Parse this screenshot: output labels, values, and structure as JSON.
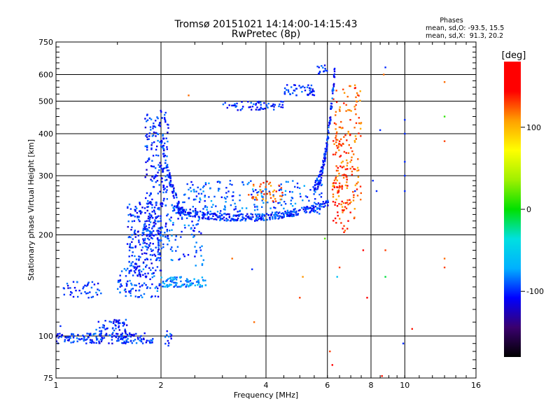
{
  "chart_data": {
    "type": "scatter",
    "title": "Tromsø 20151021 14:14:00-14:15:43",
    "subtitle": "RwPretec (8p)",
    "xlabel": "Frequency [MHz]",
    "ylabel": "Stationary phase Virtual Height [km]",
    "x_scale": "log",
    "y_scale": "log",
    "xlim": [
      1,
      16
    ],
    "ylim": [
      75,
      750
    ],
    "x_ticks": [
      1,
      2,
      4,
      6,
      8,
      10,
      16
    ],
    "x_gridlines": [
      2,
      4,
      6,
      8,
      10
    ],
    "y_ticks": [
      75,
      100,
      200,
      300,
      400,
      500,
      600,
      750
    ],
    "y_gridlines": [
      100,
      200,
      300,
      400,
      500,
      600
    ],
    "grid": true,
    "stats": {
      "header": "Phases",
      "line_o": "mean, sd,O: -93.5, 15.5",
      "line_x": "mean, sd,X:  91.3, 20.2"
    },
    "colorbar": {
      "label": "[deg]",
      "min": -180,
      "max": 180,
      "ticks": [
        -100,
        0,
        100
      ],
      "colormap": "rainbow",
      "stops": [
        "#000000",
        "#3a006e",
        "#0000ff",
        "#00b0ff",
        "#00e0e0",
        "#00e000",
        "#a0f000",
        "#ffff00",
        "#ffa000",
        "#ff0000",
        "#ff0000"
      ]
    },
    "traces": [
      {
        "x_range": [
          1.0,
          1.9
        ],
        "y_range": [
          95,
          102
        ],
        "phase": -100,
        "count": 170
      },
      {
        "x_range": [
          1.3,
          1.6
        ],
        "y_range": [
          100,
          112
        ],
        "phase": -100,
        "count": 60
      },
      {
        "x_range": [
          1.05,
          1.35
        ],
        "y_range": [
          130,
          145
        ],
        "phase": -100,
        "count": 40
      },
      {
        "x_range": [
          1.5,
          2.0
        ],
        "y_range": [
          130,
          160
        ],
        "phase": -95,
        "count": 90
      },
      {
        "x_range": [
          1.6,
          2.0
        ],
        "y_range": [
          150,
          250
        ],
        "phase": -100,
        "count": 220
      },
      {
        "x_range": [
          1.8,
          2.1
        ],
        "y_range": [
          180,
          470
        ],
        "phase": -100,
        "count": 260
      },
      {
        "x_range": [
          2.0,
          2.7
        ],
        "y_range": [
          140,
          150
        ],
        "phase": -80,
        "count": 90
      },
      {
        "x_range": [
          2.1,
          2.7
        ],
        "y_range": [
          160,
          230
        ],
        "phase": -90,
        "count": 60
      },
      {
        "x_range": [
          2.05,
          2.15
        ],
        "y_range": [
          93,
          105
        ],
        "phase": -100,
        "count": 12
      },
      {
        "x_range": [
          2.3,
          6.0
        ],
        "y_range": [
          230,
          290
        ],
        "phase": -90,
        "count": 200
      },
      {
        "x_range": [
          3.5,
          4.5
        ],
        "y_range": [
          250,
          290
        ],
        "phase": 120,
        "count": 40
      },
      {
        "x_range": [
          3.0,
          4.5
        ],
        "y_range": [
          470,
          500
        ],
        "phase": -100,
        "count": 60
      },
      {
        "x_range": [
          4.5,
          5.5
        ],
        "y_range": [
          520,
          560
        ],
        "phase": -100,
        "count": 50
      },
      {
        "x_range": [
          5.6,
          6.0
        ],
        "y_range": [
          600,
          640
        ],
        "phase": -95,
        "count": 14
      },
      {
        "x_range": [
          6.2,
          7.5
        ],
        "y_range": [
          220,
          560
        ],
        "phase": 120,
        "count": 160
      },
      {
        "x_range": [
          6.2,
          7.0
        ],
        "y_range": [
          200,
          400
        ],
        "phase": 135,
        "count": 60
      }
    ],
    "curves": [
      {
        "kind": "o-trace",
        "x_range": [
          2.15,
          6.05
        ],
        "y_min": 225,
        "phase": -100,
        "count": 360
      },
      {
        "kind": "o-cusp-left",
        "x_range": [
          2.02,
          2.3
        ],
        "y_range": [
          230,
          420
        ],
        "phase": -100,
        "count": 80
      },
      {
        "kind": "o-cusp-right",
        "x_range": [
          5.5,
          6.3
        ],
        "y_range": [
          280,
          620
        ],
        "phase": -100,
        "count": 140
      }
    ],
    "outliers": [
      {
        "x": 1.2,
        "y": 140,
        "phase": -100
      },
      {
        "x": 1.25,
        "y": 135,
        "phase": -100
      },
      {
        "x": 1.03,
        "y": 107,
        "phase": -100
      },
      {
        "x": 2.6,
        "y": 180,
        "phase": -100
      },
      {
        "x": 2.4,
        "y": 520,
        "phase": 120
      },
      {
        "x": 3.65,
        "y": 158,
        "phase": -100
      },
      {
        "x": 3.7,
        "y": 110,
        "phase": 120
      },
      {
        "x": 3.2,
        "y": 170,
        "phase": 120
      },
      {
        "x": 5.1,
        "y": 150,
        "phase": 110
      },
      {
        "x": 5.0,
        "y": 130,
        "phase": 130
      },
      {
        "x": 5.9,
        "y": 195,
        "phase": 20
      },
      {
        "x": 6.5,
        "y": 160,
        "phase": 130
      },
      {
        "x": 6.1,
        "y": 90,
        "phase": 130
      },
      {
        "x": 6.2,
        "y": 82,
        "phase": 150
      },
      {
        "x": 6.4,
        "y": 150,
        "phase": -60
      },
      {
        "x": 7.2,
        "y": 270,
        "phase": -100
      },
      {
        "x": 7.6,
        "y": 180,
        "phase": 150
      },
      {
        "x": 7.8,
        "y": 130,
        "phase": 160
      },
      {
        "x": 7.4,
        "y": 430,
        "phase": 120
      },
      {
        "x": 8.1,
        "y": 290,
        "phase": -100
      },
      {
        "x": 8.3,
        "y": 270,
        "phase": -100
      },
      {
        "x": 8.7,
        "y": 600,
        "phase": 120
      },
      {
        "x": 8.8,
        "y": 630,
        "phase": -100
      },
      {
        "x": 8.5,
        "y": 410,
        "phase": -100
      },
      {
        "x": 8.8,
        "y": 150,
        "phase": -10
      },
      {
        "x": 8.8,
        "y": 180,
        "phase": 130
      },
      {
        "x": 8.6,
        "y": 76,
        "phase": 140
      },
      {
        "x": 10.0,
        "y": 440,
        "phase": -100
      },
      {
        "x": 10.0,
        "y": 400,
        "phase": -100
      },
      {
        "x": 10.0,
        "y": 330,
        "phase": -100
      },
      {
        "x": 10.0,
        "y": 300,
        "phase": -100
      },
      {
        "x": 10.0,
        "y": 270,
        "phase": -100
      },
      {
        "x": 9.9,
        "y": 95,
        "phase": -100
      },
      {
        "x": 10.5,
        "y": 105,
        "phase": 140
      },
      {
        "x": 13.0,
        "y": 570,
        "phase": 120
      },
      {
        "x": 13.0,
        "y": 450,
        "phase": 10
      },
      {
        "x": 13.0,
        "y": 380,
        "phase": 130
      },
      {
        "x": 13.0,
        "y": 170,
        "phase": 120
      },
      {
        "x": 13.0,
        "y": 160,
        "phase": 130
      }
    ]
  }
}
